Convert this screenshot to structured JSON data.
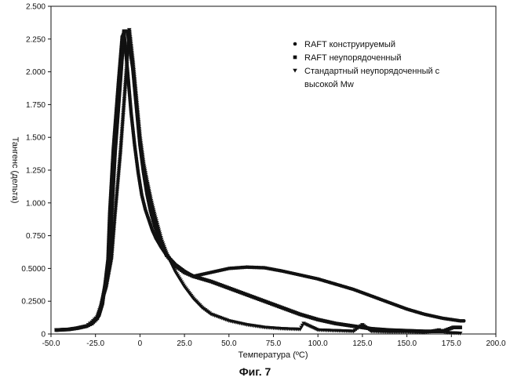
{
  "caption": "Фиг. 7",
  "chart_data": {
    "type": "scatter",
    "xlabel": "Температура (ºС)",
    "ylabel": "Тангенс (дельта)",
    "xlim": [
      -50.0,
      200.0
    ],
    "ylim": [
      0,
      2.5
    ],
    "x_ticks": [
      "-50.0",
      "-25.0",
      "0",
      "25.0",
      "50.0",
      "75.0",
      "100.0",
      "125.0",
      "150.0",
      "175.0",
      "200.0"
    ],
    "y_ticks": [
      "0",
      "0.2500",
      "0.5000",
      "0.750",
      "1.000",
      "1.250",
      "1.500",
      "1.750",
      "2.000",
      "2.250",
      "2.500"
    ],
    "legend_position": "top-right",
    "series": [
      {
        "name": "RAFT конструируемый",
        "marker": "circle",
        "points": [
          [
            -47,
            0.03
          ],
          [
            -40,
            0.035
          ],
          [
            -35,
            0.045
          ],
          [
            -30,
            0.06
          ],
          [
            -27,
            0.08
          ],
          [
            -25,
            0.11
          ],
          [
            -23,
            0.14
          ],
          [
            -21,
            0.23
          ],
          [
            -20,
            0.34
          ],
          [
            -18,
            0.57
          ],
          [
            -17,
            0.93
          ],
          [
            -15,
            1.41
          ],
          [
            -12,
            1.94
          ],
          [
            -10,
            2.27
          ],
          [
            -9,
            2.3
          ],
          [
            -7,
            2.01
          ],
          [
            -5,
            1.69
          ],
          [
            -3,
            1.44
          ],
          [
            -1,
            1.23
          ],
          [
            1,
            1.06
          ],
          [
            3,
            0.95
          ],
          [
            5,
            0.87
          ],
          [
            7,
            0.79
          ],
          [
            9,
            0.73
          ],
          [
            12,
            0.66
          ],
          [
            15,
            0.6
          ],
          [
            20,
            0.53
          ],
          [
            25,
            0.48
          ],
          [
            30,
            0.44
          ],
          [
            40,
            0.47
          ],
          [
            50,
            0.5
          ],
          [
            60,
            0.51
          ],
          [
            70,
            0.505
          ],
          [
            80,
            0.48
          ],
          [
            90,
            0.45
          ],
          [
            100,
            0.42
          ],
          [
            110,
            0.38
          ],
          [
            120,
            0.34
          ],
          [
            130,
            0.29
          ],
          [
            140,
            0.24
          ],
          [
            150,
            0.19
          ],
          [
            160,
            0.15
          ],
          [
            170,
            0.12
          ],
          [
            180,
            0.1
          ],
          [
            182,
            0.1
          ]
        ]
      },
      {
        "name": "RAFT неупорядоченный",
        "marker": "square",
        "points": [
          [
            -47,
            0.03
          ],
          [
            -40,
            0.035
          ],
          [
            -35,
            0.045
          ],
          [
            -30,
            0.06
          ],
          [
            -27,
            0.08
          ],
          [
            -24,
            0.12
          ],
          [
            -22,
            0.2
          ],
          [
            -20,
            0.34
          ],
          [
            -17,
            0.56
          ],
          [
            -16,
            0.91
          ],
          [
            -14,
            1.39
          ],
          [
            -11,
            1.94
          ],
          [
            -9,
            2.31
          ],
          [
            -7,
            2.31
          ],
          [
            -4,
            2.03
          ],
          [
            -2,
            1.74
          ],
          [
            0,
            1.45
          ],
          [
            2,
            1.24
          ],
          [
            4,
            1.07
          ],
          [
            6,
            0.94
          ],
          [
            8,
            0.84
          ],
          [
            10,
            0.76
          ],
          [
            12,
            0.68
          ],
          [
            15,
            0.6
          ],
          [
            20,
            0.52
          ],
          [
            25,
            0.47
          ],
          [
            30,
            0.44
          ],
          [
            40,
            0.4
          ],
          [
            50,
            0.35
          ],
          [
            60,
            0.3
          ],
          [
            70,
            0.25
          ],
          [
            80,
            0.2
          ],
          [
            90,
            0.15
          ],
          [
            100,
            0.11
          ],
          [
            110,
            0.08
          ],
          [
            120,
            0.06
          ],
          [
            130,
            0.04
          ],
          [
            140,
            0.03
          ],
          [
            150,
            0.025
          ],
          [
            160,
            0.02
          ],
          [
            170,
            0.02
          ],
          [
            176,
            0.05
          ],
          [
            180,
            0.05
          ]
        ]
      },
      {
        "name": "Стандартный неупорядоченный с высокой Mw",
        "marker": "triangle-down",
        "points": [
          [
            -47,
            0.03
          ],
          [
            -40,
            0.035
          ],
          [
            -35,
            0.045
          ],
          [
            -30,
            0.06
          ],
          [
            -27,
            0.09
          ],
          [
            -24,
            0.13
          ],
          [
            -22,
            0.21
          ],
          [
            -19,
            0.35
          ],
          [
            -16,
            0.57
          ],
          [
            -14,
            0.91
          ],
          [
            -11,
            1.38
          ],
          [
            -8,
            1.94
          ],
          [
            -6,
            2.32
          ],
          [
            -4,
            2.08
          ],
          [
            -2,
            1.79
          ],
          [
            0,
            1.5
          ],
          [
            2,
            1.3
          ],
          [
            4,
            1.16
          ],
          [
            6,
            1.03
          ],
          [
            8,
            0.92
          ],
          [
            10,
            0.82
          ],
          [
            12,
            0.72
          ],
          [
            15,
            0.61
          ],
          [
            20,
            0.47
          ],
          [
            25,
            0.36
          ],
          [
            30,
            0.27
          ],
          [
            35,
            0.2
          ],
          [
            40,
            0.15
          ],
          [
            50,
            0.1
          ],
          [
            60,
            0.07
          ],
          [
            70,
            0.05
          ],
          [
            80,
            0.04
          ],
          [
            90,
            0.035
          ],
          [
            92,
            0.08
          ],
          [
            100,
            0.03
          ],
          [
            110,
            0.025
          ],
          [
            120,
            0.02
          ],
          [
            125,
            0.07
          ],
          [
            130,
            0.02
          ],
          [
            140,
            0.015
          ],
          [
            150,
            0.015
          ],
          [
            160,
            0.01
          ],
          [
            168,
            0.03
          ],
          [
            172,
            0.01
          ],
          [
            180,
            0.005
          ]
        ]
      }
    ]
  }
}
